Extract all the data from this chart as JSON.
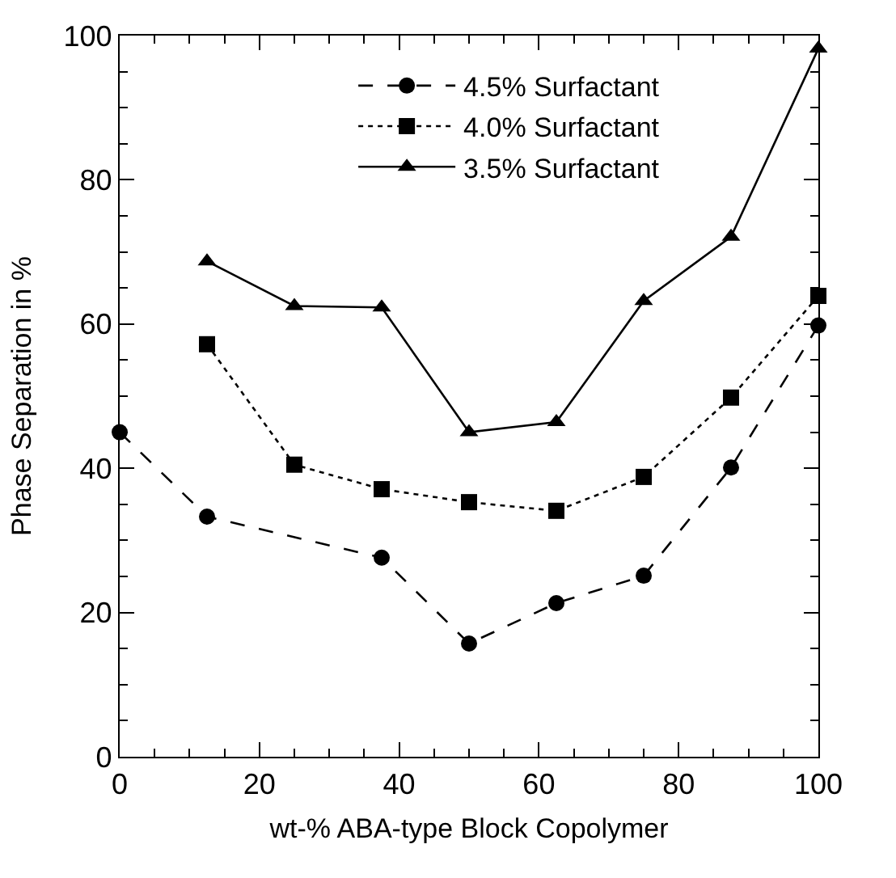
{
  "chart_data": {
    "type": "line",
    "xlabel": "wt-% ABA-type Block Copolymer",
    "ylabel": "Phase Separation in %",
    "series": [
      {
        "name": "4.5% Surfactant",
        "color": "#000000",
        "marker": "circle",
        "line_style": "dashed",
        "x": [
          0,
          12.5,
          37.5,
          50,
          62.5,
          75,
          87.5,
          100
        ],
        "values": [
          45,
          33.3,
          27.6,
          15.7,
          21.3,
          25.1,
          40.1,
          59.8
        ]
      },
      {
        "name": "4.0% Surfactant",
        "color": "#000000",
        "marker": "square",
        "line_style": "dotted",
        "x": [
          12.5,
          25,
          37.5,
          50,
          62.5,
          75,
          87.5,
          100
        ],
        "values": [
          57.2,
          40.5,
          37.1,
          35.3,
          34.1,
          38.8,
          49.8,
          63.9
        ]
      },
      {
        "name": "3.5% Surfactant",
        "color": "#000000",
        "marker": "triangle",
        "line_style": "solid",
        "x": [
          12.5,
          25,
          37.5,
          50,
          62.5,
          75,
          87.5,
          100
        ],
        "values": [
          68.7,
          62.5,
          62.3,
          45.0,
          46.4,
          63.2,
          72.1,
          98.2
        ]
      }
    ],
    "xlim": [
      0,
      100
    ],
    "ylim": [
      0,
      100
    ],
    "xticks": [
      0,
      {
        "value": 5,
        "label": null
      },
      {
        "value": 10,
        "label": null
      },
      {
        "value": 15,
        "label": null
      },
      20,
      {
        "value": 25,
        "label": null
      },
      {
        "value": 30,
        "label": null
      },
      {
        "value": 35,
        "label": null
      },
      40,
      {
        "value": 45,
        "label": null
      },
      {
        "value": 50,
        "label": null
      },
      {
        "value": 55,
        "label": null
      },
      60,
      {
        "value": 65,
        "label": null
      },
      {
        "value": 70,
        "label": null
      },
      {
        "value": 75,
        "label": null
      },
      80,
      {
        "value": 85,
        "label": null
      },
      {
        "value": 90,
        "label": null
      },
      {
        "value": 95,
        "label": null
      },
      100
    ],
    "yticks": [
      0,
      {
        "value": 5,
        "label": null
      },
      {
        "value": 10,
        "label": null
      },
      {
        "value": 15,
        "label": null
      },
      20,
      {
        "value": 25,
        "label": null
      },
      {
        "value": 30,
        "label": null
      },
      {
        "value": 35,
        "label": null
      },
      40,
      {
        "value": 45,
        "label": null
      },
      {
        "value": 50,
        "label": null
      },
      {
        "value": 55,
        "label": null
      },
      60,
      {
        "value": 65,
        "label": null
      },
      {
        "value": 70,
        "label": null
      },
      {
        "value": 75,
        "label": null
      },
      80,
      {
        "value": 85,
        "label": null
      },
      {
        "value": 90,
        "label": null
      },
      {
        "value": 95,
        "label": null
      },
      100
    ],
    "legend": "top right"
  }
}
